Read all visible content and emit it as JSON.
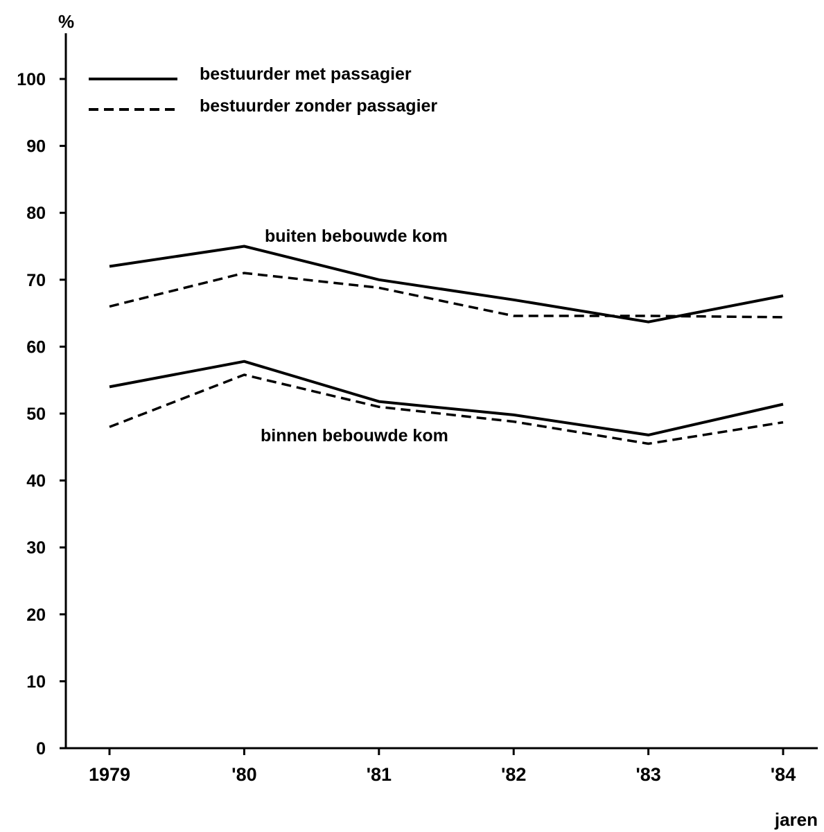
{
  "chart_data": {
    "type": "line",
    "title": "",
    "ylabel": "%",
    "xlabel": "jaren",
    "ylim": [
      0,
      100
    ],
    "y_ticks": [
      0,
      10,
      20,
      30,
      40,
      50,
      60,
      70,
      80,
      90,
      100
    ],
    "categories": [
      "1979",
      "'80",
      "'81",
      "'82",
      "'83",
      "'84"
    ],
    "grid": false,
    "legend": {
      "placement": "top-left",
      "entries": [
        {
          "label": "bestuurder met passagier",
          "style": "solid"
        },
        {
          "label": "bestuurder zonder passagier",
          "style": "dashed"
        }
      ]
    },
    "annotations": {
      "outside": "buiten bebouwde kom",
      "inside": "binnen bebouwde kom"
    },
    "series": [
      {
        "group": "outside",
        "style": "solid",
        "values": [
          72,
          75,
          70,
          67,
          63.7,
          67.6
        ]
      },
      {
        "group": "outside",
        "style": "dashed",
        "values": [
          66,
          71,
          68.8,
          64.6,
          64.6,
          64.4
        ]
      },
      {
        "group": "inside",
        "style": "solid",
        "values": [
          54,
          57.8,
          51.8,
          49.8,
          46.8,
          51.4
        ]
      },
      {
        "group": "inside",
        "style": "dashed",
        "values": [
          48,
          55.8,
          51,
          48.8,
          45.5,
          48.7
        ]
      }
    ],
    "line_color": "#000000"
  }
}
